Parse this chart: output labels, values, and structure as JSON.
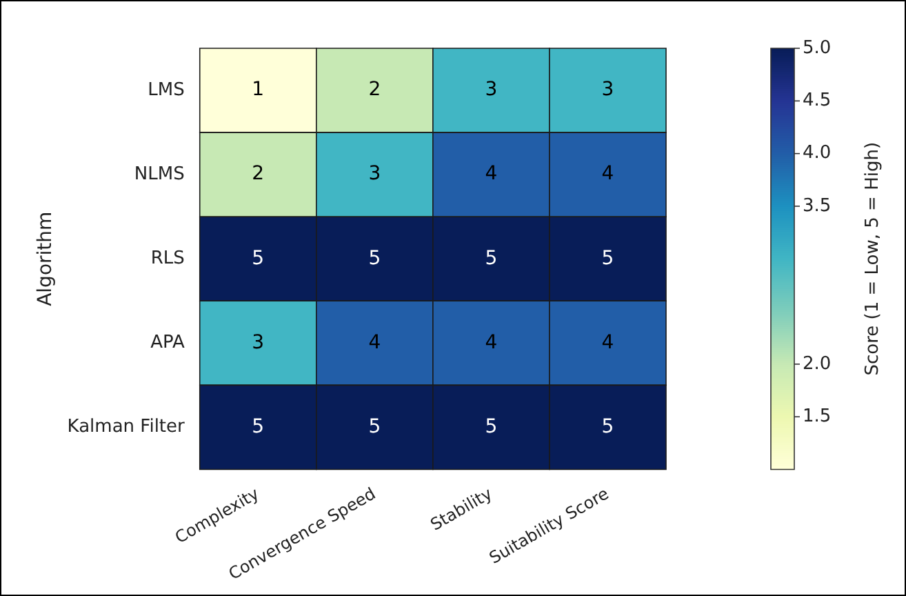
{
  "chart_data": {
    "type": "heatmap",
    "categories": [
      "Complexity",
      "Convergence Speed",
      "Stability",
      "Suitability Score"
    ],
    "y_categories": [
      "LMS",
      "NLMS",
      "RLS",
      "APA",
      "Kalman Filter"
    ],
    "cells": [
      [
        1,
        2,
        3,
        3
      ],
      [
        2,
        3,
        4,
        4
      ],
      [
        5,
        5,
        5,
        5
      ],
      [
        3,
        4,
        4,
        4
      ],
      [
        5,
        5,
        5,
        5
      ]
    ],
    "data_labels": true,
    "ylabel": "Algorithm",
    "clabel": "Score (1 = Low, 5 = High)",
    "clim": [
      1,
      5
    ],
    "cticks": [
      {
        "value": 5,
        "label": "5.0"
      },
      {
        "value": 4.5,
        "label": "4.5"
      },
      {
        "value": 4,
        "label": "4.0"
      },
      {
        "value": 3.5,
        "label": "3.5"
      },
      {
        "value": 2,
        "label": "2.0"
      },
      {
        "value": 1.5,
        "label": "1.5"
      }
    ]
  }
}
